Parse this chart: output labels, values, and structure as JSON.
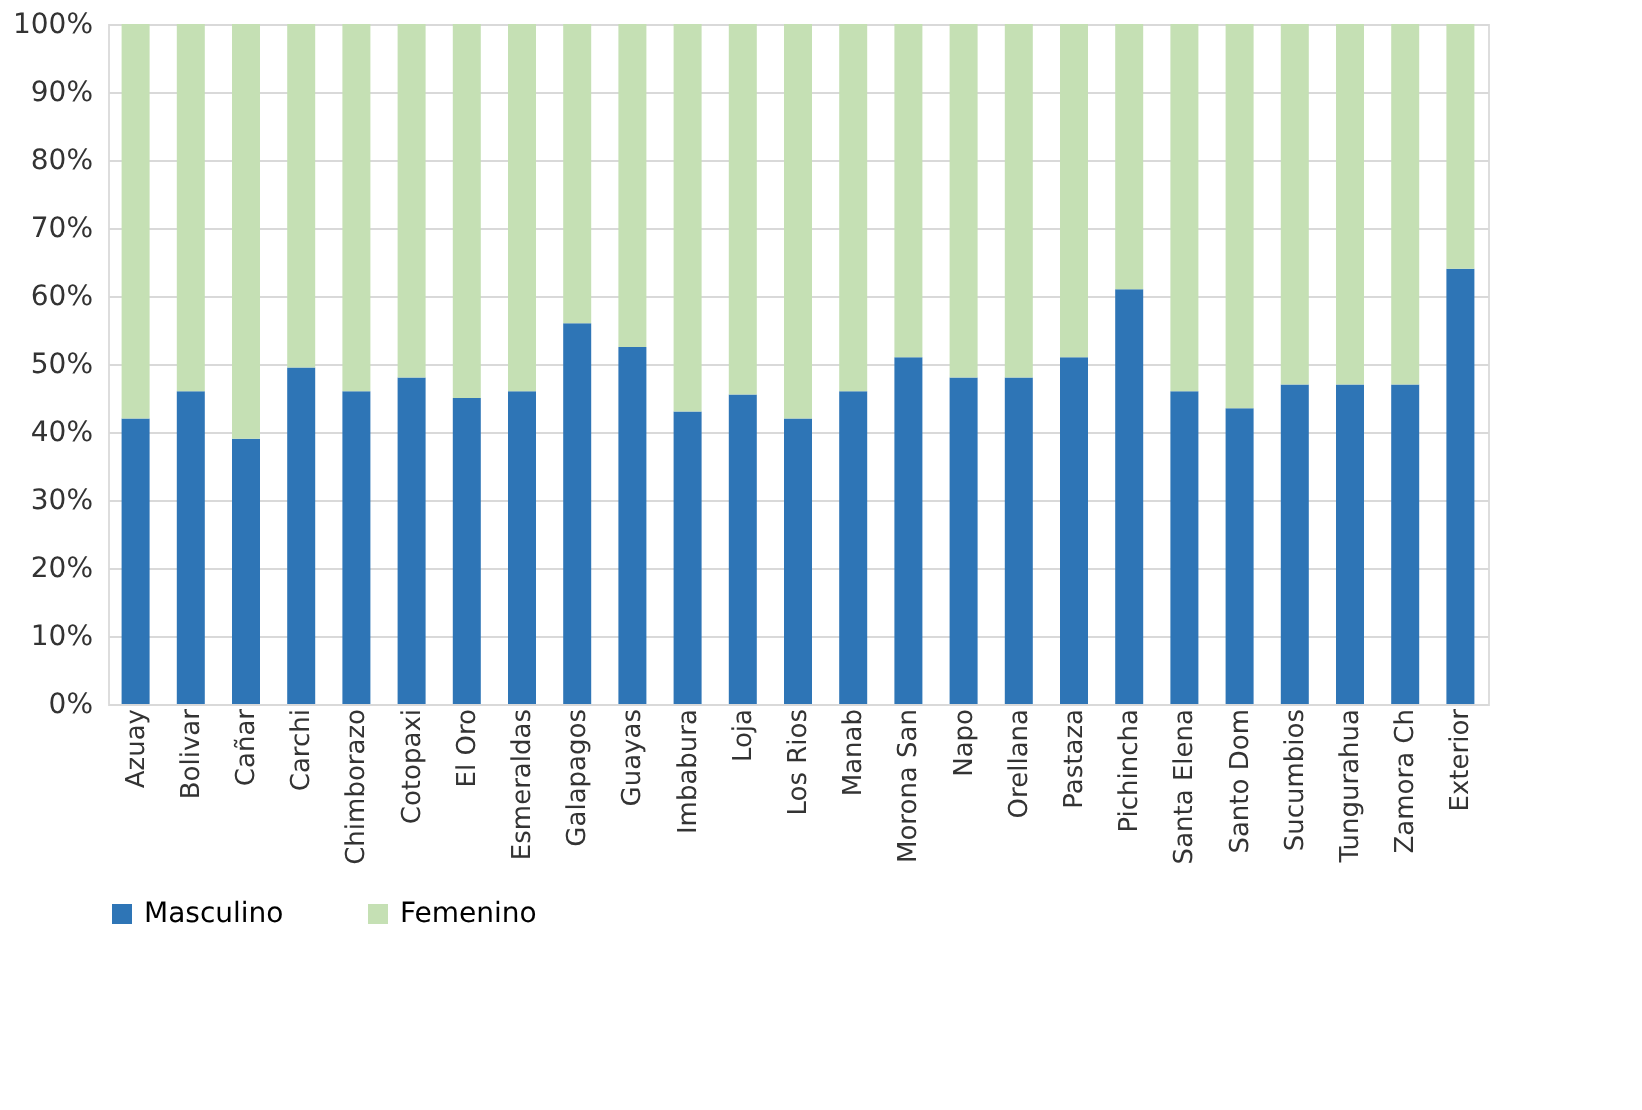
{
  "chart_data": {
    "type": "bar",
    "stacked": true,
    "categories": [
      "Azuay",
      "Bolivar",
      "Cañar",
      "Carchi",
      "Chimborazo",
      "Cotopaxi",
      "El Oro",
      "Esmeraldas",
      "Galapagos",
      "Guayas",
      "Imbabura",
      "Loja",
      "Los Rios",
      "Manab",
      "Morona San",
      "Napo",
      "Orellana",
      "Pastaza",
      "Pichincha",
      "Santa Elena",
      "Santo Dom",
      "Sucumbios",
      "Tungurahua",
      "Zamora Ch",
      "Exterior"
    ],
    "series": [
      {
        "name": "Masculino",
        "color": "#2e75b6",
        "values": [
          42,
          46,
          39,
          49.5,
          46,
          48,
          45,
          46,
          56,
          52.5,
          43,
          45.5,
          42,
          46,
          51,
          48,
          48,
          51,
          61,
          46,
          43.5,
          47,
          47,
          47,
          64
        ]
      },
      {
        "name": "Femenino",
        "color": "#c5e0b4",
        "values": [
          58,
          54,
          61,
          50.5,
          54,
          52,
          55,
          54,
          44,
          47.5,
          57,
          54.5,
          58,
          54,
          49,
          52,
          52,
          49,
          39,
          54,
          56.5,
          53,
          53,
          53,
          36
        ]
      }
    ],
    "ylim": [
      0,
      100
    ],
    "yticks": [
      {
        "value": 0,
        "label": "0%"
      },
      {
        "value": 10,
        "label": "10%"
      },
      {
        "value": 20,
        "label": "20%"
      },
      {
        "value": 30,
        "label": "30%"
      },
      {
        "value": 40,
        "label": "40%"
      },
      {
        "value": 50,
        "label": "50%"
      },
      {
        "value": 60,
        "label": "60%"
      },
      {
        "value": 70,
        "label": "70%"
      },
      {
        "value": 80,
        "label": "80%"
      },
      {
        "value": 90,
        "label": "90%"
      },
      {
        "value": 100,
        "label": "100%"
      }
    ],
    "grid": "y",
    "legend": "bottom"
  }
}
